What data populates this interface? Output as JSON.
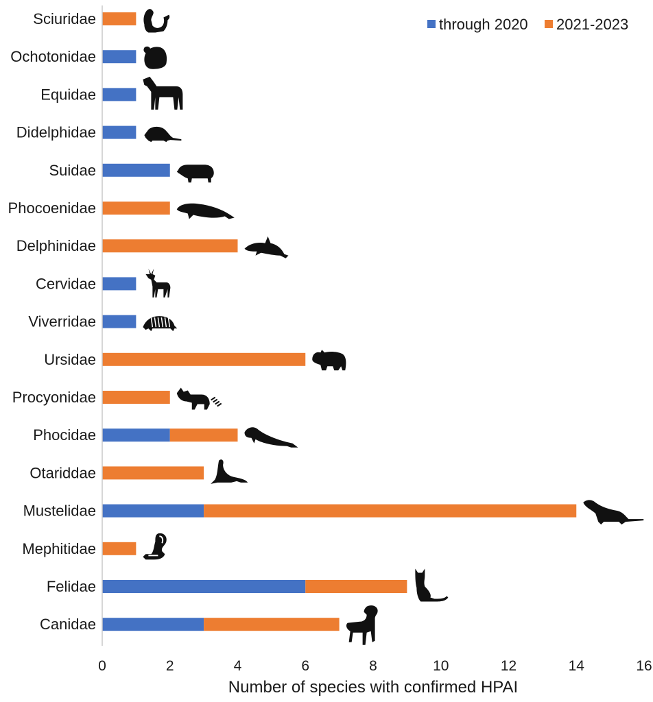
{
  "chart_data": {
    "type": "bar",
    "orientation": "horizontal",
    "stacked": true,
    "categories": [
      "Sciuridae",
      "Ochotonidae",
      "Equidae",
      "Didelphidae",
      "Suidae",
      "Phocoenidae",
      "Delphinidae",
      "Cervidae",
      "Viverridae",
      "Ursidae",
      "Procyonidae",
      "Phocidae",
      "Otariddae",
      "Mustelidae",
      "Mephitidae",
      "Felidae",
      "Canidae"
    ],
    "series": [
      {
        "name": "through 2020",
        "color": "#4472c4",
        "values": [
          0,
          1,
          1,
          1,
          2,
          0,
          0,
          1,
          1,
          0,
          0,
          2,
          0,
          3,
          0,
          6,
          3
        ]
      },
      {
        "name": "2021-2023",
        "color": "#ed7d31",
        "values": [
          1,
          0,
          0,
          0,
          0,
          2,
          4,
          0,
          0,
          6,
          2,
          2,
          3,
          11,
          1,
          3,
          4
        ]
      }
    ],
    "icons": [
      "squirrel-icon",
      "pika-icon",
      "horse-icon",
      "opossum-icon",
      "pig-icon",
      "porpoise-icon",
      "dolphin-icon",
      "deer-icon",
      "civet-icon",
      "bear-icon",
      "raccoon-icon",
      "seal-icon",
      "sea-lion-icon",
      "ferret-icon",
      "skunk-icon",
      "cat-icon",
      "dog-icon"
    ],
    "xlabel": "Number of species with confirmed HPAI",
    "ylabel": "",
    "xlim": [
      0,
      16
    ],
    "xticks": [
      "0",
      "2",
      "4",
      "6",
      "8",
      "10",
      "12",
      "14",
      "16"
    ],
    "grid": false,
    "legend_position": "top-right"
  }
}
